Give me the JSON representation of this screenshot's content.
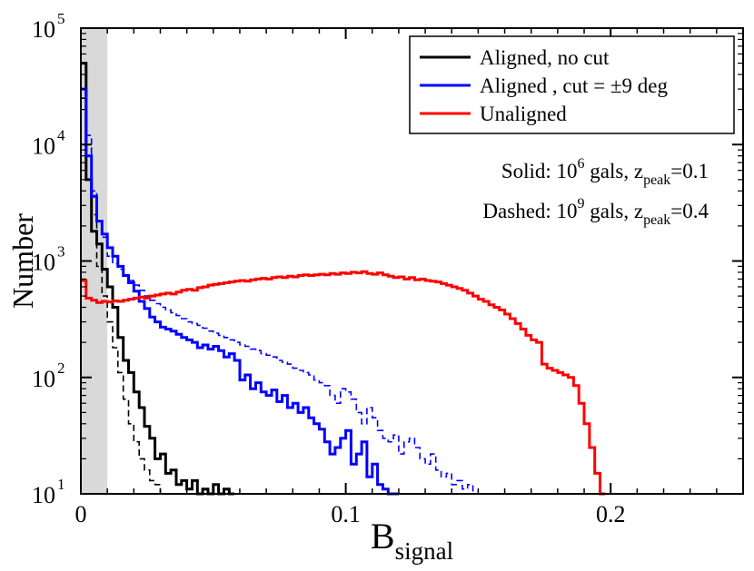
{
  "chart_data": {
    "type": "line",
    "subtype": "step-histogram",
    "x_axis": {
      "label_main": "B",
      "label_sub": "signal",
      "range": [
        0,
        0.25
      ],
      "major_ticks": [
        0,
        0.1,
        0.2
      ],
      "tick_labels": [
        "0",
        "0.1",
        "0.2"
      ],
      "minor_step": 0.02
    },
    "y_axis": {
      "label": "Number",
      "scale": "log",
      "range": [
        10,
        100000
      ],
      "ticks": [
        {
          "value": 10,
          "base": "10",
          "exp": "1"
        },
        {
          "value": 100,
          "base": "10",
          "exp": "2"
        },
        {
          "value": 1000,
          "base": "10",
          "exp": "3"
        },
        {
          "value": 10000,
          "base": "10",
          "exp": "4"
        },
        {
          "value": 100000,
          "base": "10",
          "exp": "5"
        }
      ]
    },
    "shaded_band": {
      "x0": 0,
      "x1": 0.01,
      "color": "#d9d9d9"
    },
    "legend": {
      "position": "top-right",
      "entries": [
        {
          "label": "Aligned, no cut",
          "color": "#000000"
        },
        {
          "label": "Aligned , cut = ±9 deg",
          "color": "#0000ff"
        },
        {
          "label": "Unaligned",
          "color": "#ff0000"
        }
      ]
    },
    "annotations": [
      {
        "prefix": "Solid: 10",
        "exp": "6",
        "middle": " gals, z",
        "sub": "peak",
        "suffix": "=0.1"
      },
      {
        "prefix": "Dashed: 10",
        "exp": "9",
        "middle": " gals, z",
        "sub": "peak",
        "suffix": "=0.4"
      }
    ],
    "bin_width": 0.002,
    "series": [
      {
        "name": "Aligned, no cut (solid)",
        "color": "#000000",
        "dash": "solid",
        "width": 3,
        "x": [
          0,
          0.002,
          0.004,
          0.006,
          0.008,
          0.01,
          0.012,
          0.014,
          0.016,
          0.018,
          0.02,
          0.022,
          0.024,
          0.026,
          0.028,
          0.03,
          0.032,
          0.034,
          0.036,
          0.038,
          0.04,
          0.042,
          0.044,
          0.046,
          0.048,
          0.05,
          0.052,
          0.054,
          0.056
        ],
        "y": [
          50000,
          5000,
          1800,
          1400,
          850,
          600,
          400,
          220,
          140,
          110,
          75,
          55,
          38,
          30,
          20,
          22,
          15,
          16,
          12,
          13,
          11,
          13,
          10,
          11,
          10,
          12,
          10,
          11,
          10
        ]
      },
      {
        "name": "Aligned, no cut (dashed)",
        "color": "#000000",
        "dash": "dashed",
        "width": 1.6,
        "x": [
          0,
          0.002,
          0.004,
          0.006,
          0.008,
          0.01,
          0.012,
          0.014,
          0.016,
          0.018,
          0.02,
          0.022,
          0.024,
          0.026,
          0.028,
          0.03
        ],
        "y": [
          25000,
          10000,
          2500,
          900,
          500,
          300,
          180,
          110,
          65,
          40,
          28,
          20,
          16,
          13,
          12,
          10
        ]
      },
      {
        "name": "Aligned, cut = ±9 deg (solid)",
        "color": "#0000ff",
        "dash": "solid",
        "width": 3,
        "x": [
          0,
          0.002,
          0.004,
          0.006,
          0.008,
          0.01,
          0.012,
          0.014,
          0.016,
          0.018,
          0.02,
          0.022,
          0.024,
          0.026,
          0.028,
          0.03,
          0.032,
          0.034,
          0.036,
          0.038,
          0.04,
          0.042,
          0.044,
          0.046,
          0.048,
          0.05,
          0.052,
          0.054,
          0.056,
          0.058,
          0.06,
          0.062,
          0.064,
          0.066,
          0.068,
          0.07,
          0.072,
          0.074,
          0.076,
          0.078,
          0.08,
          0.082,
          0.084,
          0.086,
          0.088,
          0.09,
          0.092,
          0.094,
          0.096,
          0.098,
          0.1,
          0.102,
          0.104,
          0.106,
          0.108,
          0.11,
          0.112,
          0.114,
          0.116,
          0.118
        ],
        "y": [
          30000,
          8000,
          3600,
          2200,
          1700,
          1300,
          1100,
          900,
          750,
          650,
          550,
          450,
          390,
          330,
          300,
          270,
          260,
          250,
          235,
          220,
          210,
          200,
          180,
          190,
          175,
          185,
          170,
          150,
          160,
          140,
          95,
          105,
          80,
          90,
          75,
          70,
          78,
          62,
          70,
          55,
          60,
          50,
          55,
          45,
          40,
          36,
          28,
          22,
          25,
          30,
          35,
          18,
          22,
          28,
          14,
          18,
          12,
          11,
          10,
          10
        ]
      },
      {
        "name": "Aligned, cut = ±9 deg (dashed)",
        "color": "#0000ff",
        "dash": "dashed",
        "width": 1.6,
        "x": [
          0,
          0.002,
          0.004,
          0.006,
          0.008,
          0.01,
          0.012,
          0.014,
          0.016,
          0.018,
          0.02,
          0.022,
          0.024,
          0.026,
          0.028,
          0.03,
          0.032,
          0.034,
          0.036,
          0.038,
          0.04,
          0.042,
          0.044,
          0.046,
          0.048,
          0.05,
          0.052,
          0.054,
          0.056,
          0.058,
          0.06,
          0.062,
          0.064,
          0.066,
          0.068,
          0.07,
          0.072,
          0.074,
          0.076,
          0.078,
          0.08,
          0.082,
          0.084,
          0.086,
          0.088,
          0.09,
          0.092,
          0.094,
          0.096,
          0.098,
          0.1,
          0.102,
          0.104,
          0.106,
          0.108,
          0.11,
          0.112,
          0.114,
          0.116,
          0.118,
          0.12,
          0.122,
          0.124,
          0.126,
          0.128,
          0.13,
          0.132,
          0.134,
          0.136,
          0.138,
          0.14,
          0.142,
          0.144,
          0.146,
          0.148,
          0.15
        ],
        "y": [
          30000,
          12000,
          4000,
          2200,
          1600,
          1100,
          950,
          850,
          750,
          680,
          620,
          560,
          500,
          460,
          430,
          400,
          380,
          360,
          340,
          320,
          300,
          290,
          280,
          265,
          250,
          240,
          230,
          220,
          210,
          200,
          190,
          185,
          175,
          170,
          160,
          155,
          150,
          140,
          135,
          130,
          120,
          115,
          110,
          105,
          95,
          90,
          85,
          70,
          60,
          80,
          75,
          65,
          50,
          40,
          55,
          45,
          35,
          30,
          28,
          32,
          22,
          28,
          30,
          25,
          20,
          18,
          22,
          16,
          14,
          15,
          12,
          13,
          11,
          12,
          10,
          10
        ]
      },
      {
        "name": "Unaligned",
        "color": "#ff0000",
        "dash": "solid",
        "width": 3,
        "x": [
          0,
          0.002,
          0.004,
          0.006,
          0.008,
          0.01,
          0.012,
          0.014,
          0.016,
          0.018,
          0.02,
          0.022,
          0.024,
          0.026,
          0.028,
          0.03,
          0.032,
          0.034,
          0.036,
          0.038,
          0.04,
          0.042,
          0.044,
          0.046,
          0.048,
          0.05,
          0.052,
          0.054,
          0.056,
          0.058,
          0.06,
          0.062,
          0.064,
          0.066,
          0.068,
          0.07,
          0.072,
          0.074,
          0.076,
          0.078,
          0.08,
          0.082,
          0.084,
          0.086,
          0.088,
          0.09,
          0.092,
          0.094,
          0.096,
          0.098,
          0.1,
          0.102,
          0.104,
          0.106,
          0.108,
          0.11,
          0.112,
          0.114,
          0.116,
          0.118,
          0.12,
          0.122,
          0.124,
          0.126,
          0.128,
          0.13,
          0.132,
          0.134,
          0.136,
          0.138,
          0.14,
          0.142,
          0.144,
          0.146,
          0.148,
          0.15,
          0.152,
          0.154,
          0.156,
          0.158,
          0.16,
          0.162,
          0.164,
          0.166,
          0.168,
          0.17,
          0.172,
          0.174,
          0.176,
          0.178,
          0.18,
          0.182,
          0.184,
          0.186,
          0.188,
          0.19,
          0.192,
          0.194,
          0.196
        ],
        "y": [
          680,
          480,
          460,
          440,
          450,
          445,
          455,
          450,
          460,
          470,
          480,
          490,
          480,
          500,
          510,
          520,
          530,
          520,
          540,
          560,
          570,
          560,
          590,
          600,
          620,
          630,
          640,
          650,
          660,
          670,
          680,
          670,
          690,
          700,
          710,
          700,
          720,
          730,
          720,
          740,
          730,
          750,
          760,
          750,
          760,
          770,
          760,
          780,
          770,
          790,
          780,
          800,
          790,
          810,
          780,
          770,
          790,
          760,
          740,
          720,
          730,
          700,
          720,
          690,
          700,
          680,
          670,
          660,
          640,
          620,
          600,
          580,
          560,
          530,
          500,
          470,
          450,
          420,
          400,
          380,
          350,
          320,
          290,
          260,
          230,
          210,
          200,
          130,
          120,
          115,
          110,
          105,
          100,
          85,
          60,
          40,
          25,
          15,
          10
        ]
      }
    ]
  }
}
